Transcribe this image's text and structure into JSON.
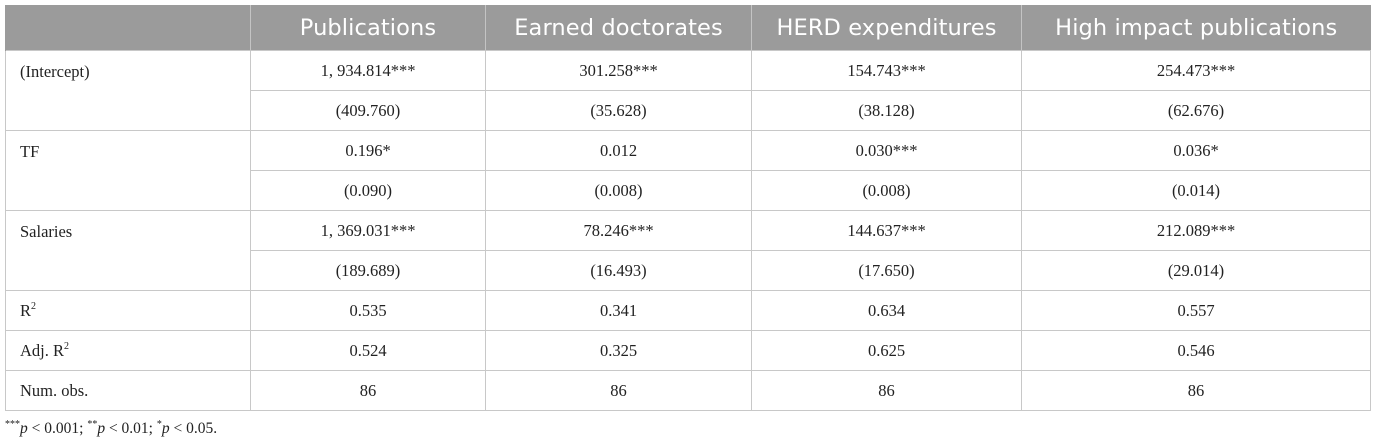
{
  "table": {
    "header": {
      "blank": "",
      "columns": [
        "Publications",
        "Earned doctorates",
        "HERD expenditures",
        "High impact publications"
      ]
    },
    "rows": [
      {
        "label": "(Intercept)",
        "estimates": [
          "1, 934.814***",
          "301.258***",
          "154.743***",
          "254.473***"
        ],
        "std_errors": [
          "(409.760)",
          "(35.628)",
          "(38.128)",
          "(62.676)"
        ]
      },
      {
        "label": "TF",
        "estimates": [
          "0.196*",
          "0.012",
          "0.030***",
          "0.036*"
        ],
        "std_errors": [
          "(0.090)",
          "(0.008)",
          "(0.008)",
          "(0.014)"
        ]
      },
      {
        "label": "Salaries",
        "estimates": [
          "1, 369.031***",
          "78.246***",
          "144.637***",
          "212.089***"
        ],
        "std_errors": [
          "(189.689)",
          "(16.493)",
          "(17.650)",
          "(29.014)"
        ]
      }
    ],
    "stats": [
      {
        "label": "R",
        "label_sup": "2",
        "values": [
          "0.535",
          "0.341",
          "0.634",
          "0.557"
        ]
      },
      {
        "label": "Adj. R",
        "label_sup": "2",
        "values": [
          "0.524",
          "0.325",
          "0.625",
          "0.546"
        ]
      },
      {
        "label": "Num. obs.",
        "label_sup": "",
        "values": [
          "86",
          "86",
          "86",
          "86"
        ]
      }
    ]
  },
  "footnote": {
    "s1": "***",
    "p1": "p",
    "t1": " < 0.001; ",
    "s2": "**",
    "p2": "p",
    "t2": " < 0.01; ",
    "s3": "*",
    "p3": "p",
    "t3": " < 0.05."
  }
}
